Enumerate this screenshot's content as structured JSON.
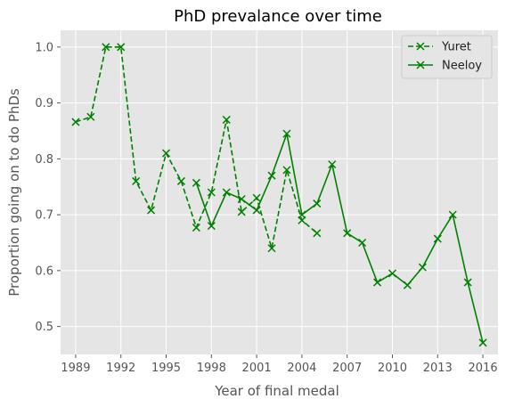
{
  "chart_data": {
    "type": "line",
    "title": "PhD prevalance over time",
    "xlabel": "Year of final medal",
    "ylabel": "Proportion going on to do PhDs",
    "xlim": [
      1988,
      2017
    ],
    "ylim": [
      0.45,
      1.03
    ],
    "x_ticks": [
      1989,
      1992,
      1995,
      1998,
      2001,
      2004,
      2007,
      2010,
      2013,
      2016
    ],
    "y_ticks": [
      0.5,
      0.6,
      0.7,
      0.8,
      0.9,
      1.0
    ],
    "y_tick_labels": [
      "0.5",
      "0.6",
      "0.7",
      "0.8",
      "0.9",
      "1.0"
    ],
    "grid": true,
    "style": "ggplot",
    "legend_position": "top-right",
    "series": [
      {
        "name": "Yuret",
        "color": "#008000",
        "line_style": "dashed",
        "marker": "x",
        "points": [
          [
            1989,
            0.866
          ],
          [
            1990,
            0.875
          ],
          [
            1991,
            1.0
          ],
          [
            1992,
            1.0
          ],
          [
            1993,
            0.76
          ],
          [
            1994,
            0.708
          ],
          [
            1995,
            0.81
          ],
          [
            1996,
            0.76
          ],
          [
            1997,
            0.677
          ],
          [
            1998,
            0.74
          ],
          [
            1999,
            0.87
          ],
          [
            2000,
            0.705
          ],
          [
            2001,
            0.73
          ],
          [
            2002,
            0.64
          ],
          [
            2003,
            0.78
          ],
          [
            2004,
            0.69
          ],
          [
            2005,
            0.667
          ]
        ]
      },
      {
        "name": "Neeloy",
        "color": "#008000",
        "line_style": "solid",
        "marker": "x",
        "points": [
          [
            1997,
            0.757
          ],
          [
            1998,
            0.68
          ],
          [
            1999,
            0.74
          ],
          [
            2000,
            0.728
          ],
          [
            2001,
            0.708
          ],
          [
            2002,
            0.77
          ],
          [
            2003,
            0.845
          ],
          [
            2004,
            0.7
          ],
          [
            2005,
            0.72
          ],
          [
            2006,
            0.79
          ],
          [
            2007,
            0.667
          ],
          [
            2008,
            0.65
          ],
          [
            2009,
            0.579
          ],
          [
            2010,
            0.595
          ],
          [
            2011,
            0.574
          ],
          [
            2012,
            0.606
          ],
          [
            2013,
            0.657
          ],
          [
            2014,
            0.7
          ],
          [
            2015,
            0.579
          ],
          [
            2016,
            0.471
          ]
        ]
      }
    ]
  }
}
